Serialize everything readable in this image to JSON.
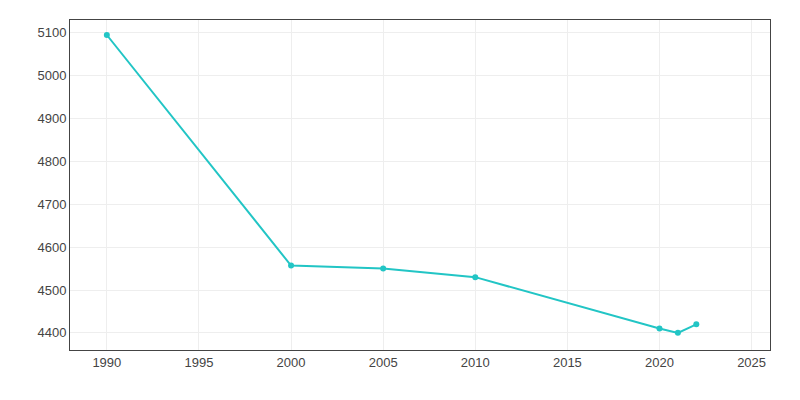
{
  "chart_data": {
    "type": "line",
    "x": [
      1990,
      2000,
      2005,
      2010,
      2020,
      2021,
      2022
    ],
    "values": [
      5095,
      4557,
      4550,
      4530,
      4410,
      4400,
      4420
    ],
    "color": "#22c5c5",
    "marker": "circle",
    "xlim": [
      1988,
      2026
    ],
    "ylim": [
      4360,
      5130
    ],
    "xticks": [
      1990,
      1995,
      2000,
      2005,
      2010,
      2015,
      2020,
      2025
    ],
    "yticks": [
      4400,
      4500,
      4600,
      4700,
      4800,
      4900,
      5000,
      5100
    ],
    "grid": true
  }
}
